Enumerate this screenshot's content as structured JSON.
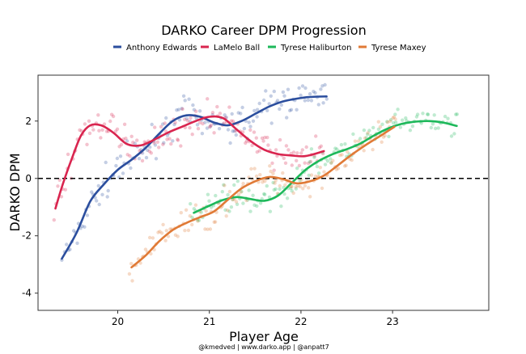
{
  "chart_data": {
    "type": "line",
    "title": "DARKO Career DPM Progression",
    "xlabel": "Player Age",
    "ylabel": "DARKO DPM",
    "caption": "@kmedved | www.darko.app | @anpatt7",
    "xlim": [
      19.13,
      24.05
    ],
    "ylim": [
      -4.6,
      3.6
    ],
    "x_ticks": [
      20,
      21,
      22,
      23
    ],
    "y_ticks": [
      -4,
      -2,
      0,
      2
    ],
    "reference_line": 0,
    "legend_position": "top-center",
    "grid": false,
    "series": [
      {
        "name": "Anthony Edwards",
        "color": "#2b4e9e",
        "smooth": [
          [
            19.39,
            -2.8
          ],
          [
            19.55,
            -1.9
          ],
          [
            19.7,
            -0.8
          ],
          [
            19.85,
            -0.2
          ],
          [
            20.0,
            0.3
          ],
          [
            20.15,
            0.65
          ],
          [
            20.3,
            1.05
          ],
          [
            20.45,
            1.55
          ],
          [
            20.6,
            2.0
          ],
          [
            20.75,
            2.2
          ],
          [
            20.9,
            2.15
          ],
          [
            21.05,
            1.95
          ],
          [
            21.2,
            1.85
          ],
          [
            21.35,
            2.0
          ],
          [
            21.5,
            2.25
          ],
          [
            21.65,
            2.5
          ],
          [
            21.8,
            2.68
          ],
          [
            21.95,
            2.78
          ],
          [
            22.1,
            2.84
          ],
          [
            22.28,
            2.86
          ]
        ],
        "points_from": 19.39,
        "points_to": 22.3,
        "spread": 0.45
      },
      {
        "name": "LaMelo Ball",
        "color": "#d9254f",
        "smooth": [
          [
            19.32,
            -1.05
          ],
          [
            19.4,
            -0.2
          ],
          [
            19.5,
            0.7
          ],
          [
            19.6,
            1.5
          ],
          [
            19.7,
            1.85
          ],
          [
            19.82,
            1.85
          ],
          [
            19.95,
            1.6
          ],
          [
            20.1,
            1.2
          ],
          [
            20.25,
            1.15
          ],
          [
            20.4,
            1.35
          ],
          [
            20.55,
            1.6
          ],
          [
            20.7,
            1.8
          ],
          [
            20.85,
            2.0
          ],
          [
            21.0,
            2.15
          ],
          [
            21.15,
            2.1
          ],
          [
            21.3,
            1.7
          ],
          [
            21.45,
            1.3
          ],
          [
            21.6,
            1.0
          ],
          [
            21.75,
            0.85
          ],
          [
            21.9,
            0.8
          ],
          [
            22.05,
            0.78
          ],
          [
            22.25,
            0.95
          ]
        ],
        "points_from": 19.3,
        "points_to": 22.25,
        "spread": 0.4
      },
      {
        "name": "Tyrese Haliburton",
        "color": "#1db85a",
        "smooth": [
          [
            20.83,
            -1.2
          ],
          [
            21.0,
            -0.95
          ],
          [
            21.15,
            -0.75
          ],
          [
            21.3,
            -0.65
          ],
          [
            21.45,
            -0.72
          ],
          [
            21.6,
            -0.78
          ],
          [
            21.75,
            -0.6
          ],
          [
            21.9,
            -0.15
          ],
          [
            22.05,
            0.3
          ],
          [
            22.2,
            0.62
          ],
          [
            22.35,
            0.85
          ],
          [
            22.5,
            1.02
          ],
          [
            22.65,
            1.22
          ],
          [
            22.8,
            1.5
          ],
          [
            22.95,
            1.74
          ],
          [
            23.1,
            1.9
          ],
          [
            23.25,
            1.98
          ],
          [
            23.4,
            2.0
          ],
          [
            23.55,
            1.95
          ],
          [
            23.7,
            1.83
          ]
        ],
        "points_from": 20.78,
        "points_to": 23.72,
        "spread": 0.35
      },
      {
        "name": "Tyrese Maxey",
        "color": "#e07a36",
        "smooth": [
          [
            20.15,
            -3.1
          ],
          [
            20.3,
            -2.7
          ],
          [
            20.45,
            -2.2
          ],
          [
            20.6,
            -1.8
          ],
          [
            20.75,
            -1.55
          ],
          [
            20.9,
            -1.35
          ],
          [
            21.05,
            -1.15
          ],
          [
            21.2,
            -0.75
          ],
          [
            21.35,
            -0.35
          ],
          [
            21.5,
            -0.1
          ],
          [
            21.65,
            0.05
          ],
          [
            21.8,
            -0.02
          ],
          [
            21.95,
            -0.17
          ],
          [
            22.1,
            -0.1
          ],
          [
            22.25,
            0.1
          ],
          [
            22.4,
            0.45
          ],
          [
            22.55,
            0.82
          ],
          [
            22.7,
            1.15
          ],
          [
            22.85,
            1.45
          ],
          [
            23.02,
            1.8
          ]
        ],
        "points_from": 20.12,
        "points_to": 23.05,
        "spread": 0.4
      }
    ]
  }
}
